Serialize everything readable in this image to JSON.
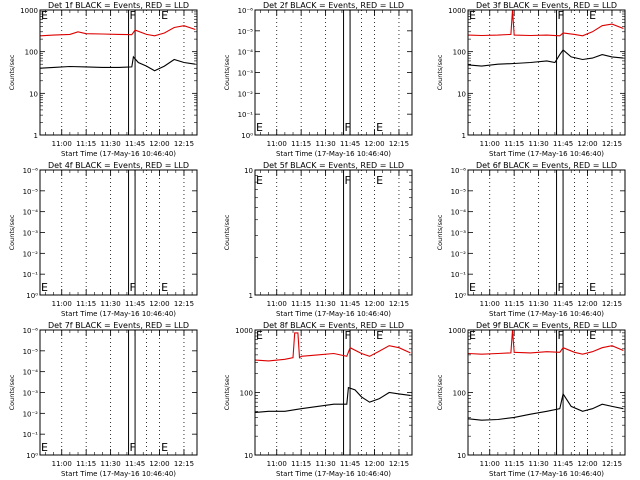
{
  "shared": {
    "xlabel": "Start Time (17-May-16 10:46:40)",
    "xticks": [
      "11:00",
      "11:15",
      "11:30",
      "11:45",
      "12:00",
      "12:15"
    ],
    "event_labels": [
      "F",
      "E"
    ],
    "colors": {
      "events": "#000000",
      "lld": "#dd0000",
      "axis": "#000000",
      "grid": "#000000"
    }
  },
  "chart_data": [
    {
      "type": "line",
      "title": "Det 1f BLACK = Events, RED = LLD",
      "ylabel": "Counts/sec",
      "yscale": "log",
      "yticks": [
        "1",
        "10",
        "100",
        "1000"
      ],
      "ylim": [
        1,
        1000
      ],
      "xlim": [
        "10:46:40",
        "12:23"
      ],
      "series": [
        {
          "name": "Events",
          "color": "#000000",
          "x": [
            "10:47",
            "10:55",
            "11:05",
            "11:15",
            "11:25",
            "11:35",
            "11:43",
            "11:44",
            "11:47",
            "11:52",
            "11:57",
            "12:03",
            "12:09",
            "12:15",
            "12:22"
          ],
          "y": [
            40,
            42,
            44,
            43,
            42,
            42,
            43,
            75,
            55,
            45,
            35,
            45,
            65,
            55,
            50
          ]
        },
        {
          "name": "LLD",
          "color": "#dd0000",
          "x": [
            "10:47",
            "10:55",
            "11:05",
            "11:10",
            "11:15",
            "11:25",
            "11:35",
            "11:43",
            "11:45",
            "11:52",
            "11:57",
            "12:03",
            "12:09",
            "12:15",
            "12:22"
          ],
          "y": [
            240,
            250,
            260,
            300,
            270,
            265,
            260,
            255,
            330,
            260,
            240,
            280,
            380,
            420,
            340
          ]
        }
      ]
    },
    {
      "type": "line",
      "title": "Det 2f BLACK = Events, RED = LLD",
      "ylabel": "Counts/sec",
      "yscale": "log",
      "yticks": [
        "10⁰",
        "10⁻¹",
        "10⁻²",
        "10⁻³",
        "10⁻⁴",
        "10⁻⁵",
        "10⁻⁶"
      ],
      "xlim": [
        "10:46:40",
        "12:23"
      ],
      "series": []
    },
    {
      "type": "line",
      "title": "Det 3f BLACK = Events, RED = LLD",
      "ylabel": "Counts/sec",
      "yscale": "log",
      "yticks": [
        "1",
        "10",
        "100",
        "1000"
      ],
      "ylim": [
        1,
        1000
      ],
      "xlim": [
        "10:46:40",
        "12:23"
      ],
      "series": [
        {
          "name": "Events",
          "color": "#000000",
          "x": [
            "10:47",
            "10:55",
            "11:05",
            "11:15",
            "11:25",
            "11:35",
            "11:40",
            "11:43",
            "11:45",
            "11:50",
            "11:57",
            "12:03",
            "12:09",
            "12:15",
            "12:22"
          ],
          "y": [
            48,
            45,
            50,
            52,
            55,
            60,
            55,
            85,
            110,
            75,
            65,
            70,
            85,
            75,
            70
          ]
        },
        {
          "name": "LLD",
          "color": "#dd0000",
          "x": [
            "10:47",
            "10:55",
            "11:05",
            "11:13",
            "11:14",
            "11:15",
            "11:25",
            "11:35",
            "11:43",
            "11:45",
            "11:52",
            "11:57",
            "12:03",
            "12:09",
            "12:15",
            "12:22"
          ],
          "y": [
            250,
            245,
            250,
            260,
            1000,
            250,
            245,
            250,
            240,
            280,
            260,
            240,
            300,
            420,
            460,
            360
          ]
        }
      ]
    },
    {
      "type": "line",
      "title": "Det 4f BLACK = Events, RED = LLD",
      "ylabel": "Counts/sec",
      "yscale": "log",
      "yticks": [
        "10⁰",
        "10⁻¹",
        "10⁻²",
        "10⁻³",
        "10⁻⁴",
        "10⁻⁵",
        "10⁻⁶"
      ],
      "xlim": [
        "10:46:40",
        "12:23"
      ],
      "series": []
    },
    {
      "type": "line",
      "title": "Det 5f BLACK = Events, RED = LLD",
      "ylabel": "Counts/sec",
      "yscale": "log",
      "yticks": [
        "1",
        "10"
      ],
      "ylim": [
        1,
        10
      ],
      "xlim": [
        "10:46:40",
        "12:23"
      ],
      "series": []
    },
    {
      "type": "line",
      "title": "Det 6f BLACK = Events, RED = LLD",
      "ylabel": "Counts/sec",
      "yscale": "log",
      "yticks": [
        "10⁰",
        "10⁻¹",
        "10⁻²",
        "10⁻³",
        "10⁻⁴",
        "10⁻⁵",
        "10⁻⁶"
      ],
      "xlim": [
        "10:46:40",
        "12:23"
      ],
      "series": []
    },
    {
      "type": "line",
      "title": "Det 7f BLACK = Events, RED = LLD",
      "ylabel": "Counts/sec",
      "yscale": "log",
      "yticks": [
        "10⁰",
        "10⁻¹",
        "10⁻²",
        "10⁻³",
        "10⁻⁴",
        "10⁻⁵",
        "10⁻⁶"
      ],
      "xlim": [
        "10:46:40",
        "12:23"
      ],
      "series": []
    },
    {
      "type": "line",
      "title": "Det 8f BLACK = Events, RED = LLD",
      "ylabel": "Counts/sec",
      "yscale": "log",
      "yticks": [
        "10",
        "100",
        "1000"
      ],
      "ylim": [
        10,
        1000
      ],
      "xlim": [
        "10:46:40",
        "12:23"
      ],
      "series": [
        {
          "name": "Events",
          "color": "#000000",
          "x": [
            "10:47",
            "10:55",
            "11:05",
            "11:15",
            "11:25",
            "11:35",
            "11:43",
            "11:44",
            "11:48",
            "11:52",
            "11:57",
            "12:03",
            "12:09",
            "12:15",
            "12:22"
          ],
          "y": [
            48,
            50,
            50,
            55,
            60,
            65,
            65,
            120,
            110,
            85,
            70,
            80,
            100,
            95,
            90
          ]
        },
        {
          "name": "LLD",
          "color": "#dd0000",
          "x": [
            "10:47",
            "10:55",
            "11:05",
            "11:10",
            "11:11",
            "11:13",
            "11:14",
            "11:15",
            "11:25",
            "11:35",
            "11:43",
            "11:45",
            "11:52",
            "11:57",
            "12:03",
            "12:09",
            "12:15",
            "12:22"
          ],
          "y": [
            330,
            320,
            340,
            360,
            900,
            900,
            360,
            380,
            400,
            420,
            380,
            520,
            420,
            380,
            460,
            560,
            520,
            430
          ]
        }
      ]
    },
    {
      "type": "line",
      "title": "Det 9f BLACK = Events, RED = LLD",
      "ylabel": "Counts/sec",
      "yscale": "log",
      "yticks": [
        "10",
        "100",
        "1000"
      ],
      "ylim": [
        10,
        1000
      ],
      "xlim": [
        "10:46:40",
        "12:23"
      ],
      "series": [
        {
          "name": "Events",
          "color": "#000000",
          "x": [
            "10:47",
            "10:55",
            "11:05",
            "11:15",
            "11:25",
            "11:35",
            "11:43",
            "11:45",
            "11:50",
            "11:57",
            "12:03",
            "12:09",
            "12:15",
            "12:22"
          ],
          "y": [
            38,
            36,
            37,
            40,
            45,
            50,
            55,
            95,
            60,
            50,
            55,
            65,
            60,
            55
          ]
        },
        {
          "name": "LLD",
          "color": "#dd0000",
          "x": [
            "10:47",
            "10:55",
            "11:05",
            "11:13",
            "11:14",
            "11:15",
            "11:25",
            "11:35",
            "11:43",
            "11:45",
            "11:52",
            "11:57",
            "12:03",
            "12:09",
            "12:15",
            "12:22"
          ],
          "y": [
            420,
            410,
            420,
            430,
            1000,
            440,
            430,
            450,
            440,
            520,
            440,
            410,
            450,
            520,
            560,
            470
          ]
        }
      ]
    }
  ]
}
